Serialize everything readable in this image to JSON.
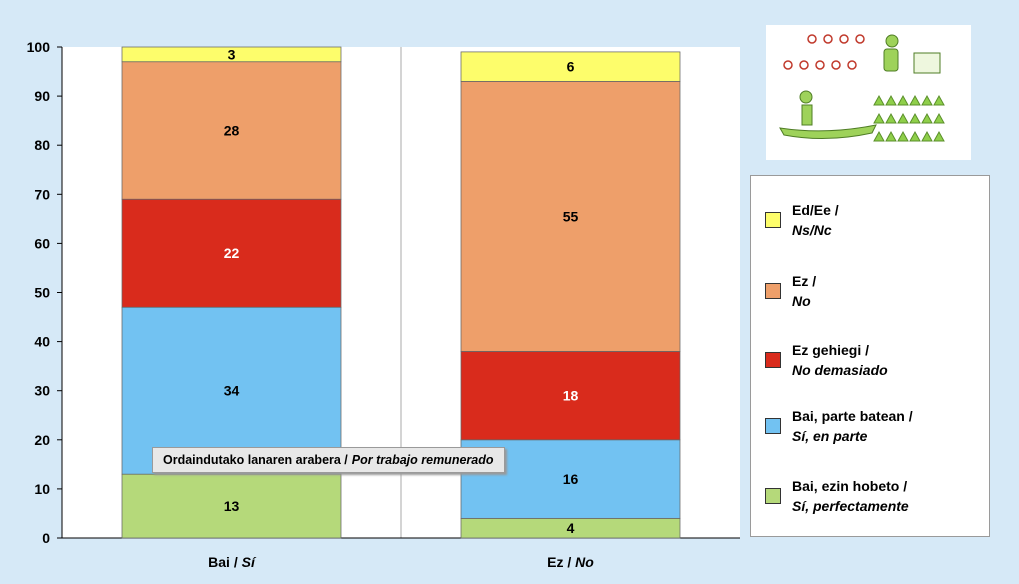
{
  "chart_data": {
    "type": "bar",
    "stacked": true,
    "categories": [
      {
        "label": "Bai / ",
        "label_italic": "Sí"
      },
      {
        "label": "Ez / ",
        "label_italic": "No"
      }
    ],
    "series": [
      {
        "label": "Bai, ezin hobeto /",
        "label_italic": "Sí, perfectamente",
        "color": "#b5d97a",
        "values": [
          13,
          4
        ],
        "label_color": "#000000"
      },
      {
        "label": "Bai, parte batean /",
        "label_italic": "Sí, en parte",
        "color": "#72c2f2",
        "values": [
          34,
          16
        ],
        "label_color": "#000000"
      },
      {
        "label": "Ez gehiegi /",
        "label_italic": "No demasiado",
        "color": "#d92b1c",
        "values": [
          22,
          18
        ],
        "label_color": "#ffffff"
      },
      {
        "label": "Ez /",
        "label_italic": "No",
        "color": "#ee9f6a",
        "values": [
          28,
          55
        ],
        "label_color": "#000000"
      },
      {
        "label": "Ed/Ee /",
        "label_italic": "Ns/Nc",
        "color": "#fdfd6b",
        "values": [
          3,
          6
        ],
        "label_color": "#000000"
      }
    ],
    "ylim": [
      0,
      100
    ],
    "yticks": [
      0,
      10,
      20,
      30,
      40,
      50,
      60,
      70,
      80,
      90,
      100
    ],
    "annotation": {
      "text": "Ordaindutako lanaren arabera / ",
      "text_italic": "Por trabajo remunerado"
    },
    "legend_placement": "right",
    "grid": false
  }
}
